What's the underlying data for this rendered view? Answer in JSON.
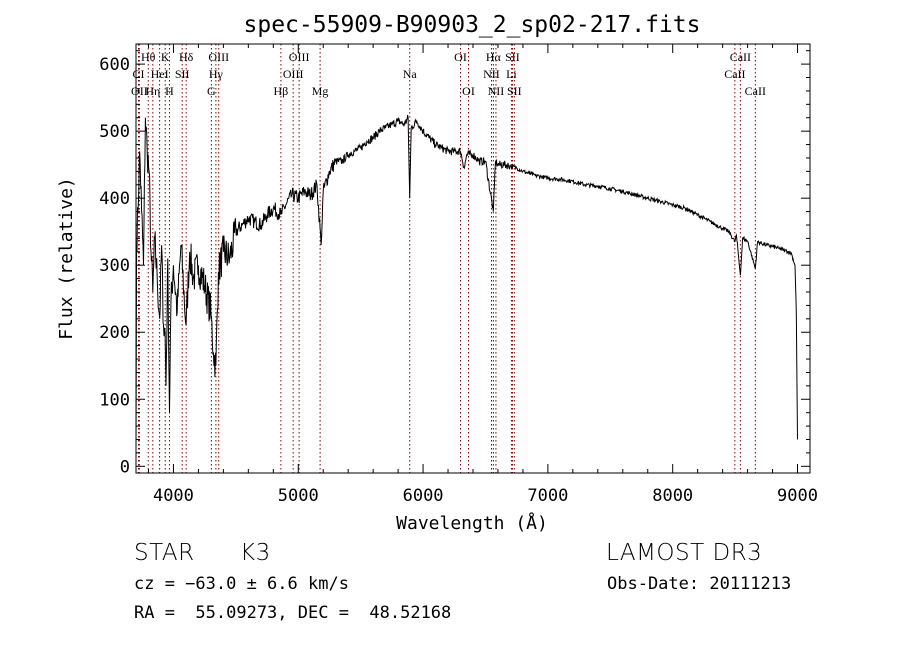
{
  "chart_data": {
    "type": "line",
    "title": "spec-55909-B90903_2_sp02-217.fits",
    "xlabel": "Wavelength (Å)",
    "ylabel": "Flux (relative)",
    "xlim": [
      3700,
      9100
    ],
    "ylim": [
      -10,
      630
    ],
    "xticks": [
      4000,
      5000,
      6000,
      7000,
      8000,
      9000
    ],
    "yticks": [
      0,
      100,
      200,
      300,
      400,
      500,
      600
    ],
    "series": [
      {
        "name": "flux",
        "points": [
          [
            3700,
            20
          ],
          [
            3705,
            330
          ],
          [
            3715,
            380
          ],
          [
            3730,
            470
          ],
          [
            3745,
            380
          ],
          [
            3760,
            300
          ],
          [
            3775,
            520
          ],
          [
            3790,
            470
          ],
          [
            3805,
            440
          ],
          [
            3820,
            320
          ],
          [
            3835,
            260
          ],
          [
            3850,
            340
          ],
          [
            3870,
            280
          ],
          [
            3890,
            220
          ],
          [
            3905,
            330
          ],
          [
            3920,
            210
          ],
          [
            3933,
            200
          ],
          [
            3940,
            120
          ],
          [
            3955,
            310
          ],
          [
            3968,
            80
          ],
          [
            3980,
            240
          ],
          [
            4000,
            300
          ],
          [
            4030,
            230
          ],
          [
            4060,
            330
          ],
          [
            4101,
            210
          ],
          [
            4130,
            320
          ],
          [
            4160,
            280
          ],
          [
            4200,
            300
          ],
          [
            4250,
            270
          ],
          [
            4300,
            230
          ],
          [
            4320,
            170
          ],
          [
            4340,
            150
          ],
          [
            4360,
            290
          ],
          [
            4400,
            320
          ],
          [
            4450,
            310
          ],
          [
            4500,
            350
          ],
          [
            4550,
            360
          ],
          [
            4600,
            370
          ],
          [
            4650,
            365
          ],
          [
            4700,
            360
          ],
          [
            4750,
            375
          ],
          [
            4800,
            385
          ],
          [
            4861,
            375
          ],
          [
            4900,
            390
          ],
          [
            4950,
            405
          ],
          [
            5000,
            400
          ],
          [
            5050,
            410
          ],
          [
            5100,
            405
          ],
          [
            5150,
            420
          ],
          [
            5183,
            330
          ],
          [
            5200,
            410
          ],
          [
            5250,
            440
          ],
          [
            5300,
            455
          ],
          [
            5350,
            455
          ],
          [
            5400,
            465
          ],
          [
            5450,
            470
          ],
          [
            5500,
            475
          ],
          [
            5550,
            485
          ],
          [
            5600,
            490
          ],
          [
            5650,
            500
          ],
          [
            5700,
            505
          ],
          [
            5750,
            510
          ],
          [
            5800,
            515
          ],
          [
            5850,
            510
          ],
          [
            5880,
            520
          ],
          [
            5893,
            400
          ],
          [
            5905,
            505
          ],
          [
            5950,
            515
          ],
          [
            6000,
            500
          ],
          [
            6050,
            490
          ],
          [
            6100,
            480
          ],
          [
            6150,
            475
          ],
          [
            6200,
            470
          ],
          [
            6250,
            470
          ],
          [
            6300,
            470
          ],
          [
            6330,
            445
          ],
          [
            6350,
            465
          ],
          [
            6400,
            465
          ],
          [
            6450,
            455
          ],
          [
            6500,
            455
          ],
          [
            6563,
            380
          ],
          [
            6580,
            455
          ],
          [
            6600,
            450
          ],
          [
            6650,
            450
          ],
          [
            6700,
            448
          ],
          [
            6750,
            445
          ],
          [
            6800,
            440
          ],
          [
            6850,
            437
          ],
          [
            6900,
            434
          ],
          [
            6950,
            432
          ],
          [
            7000,
            430
          ],
          [
            7100,
            428
          ],
          [
            7200,
            425
          ],
          [
            7300,
            420
          ],
          [
            7400,
            418
          ],
          [
            7500,
            414
          ],
          [
            7600,
            410
          ],
          [
            7700,
            405
          ],
          [
            7800,
            400
          ],
          [
            7900,
            395
          ],
          [
            8000,
            390
          ],
          [
            8100,
            385
          ],
          [
            8200,
            375
          ],
          [
            8300,
            365
          ],
          [
            8400,
            355
          ],
          [
            8450,
            350
          ],
          [
            8498,
            335
          ],
          [
            8510,
            345
          ],
          [
            8542,
            285
          ],
          [
            8560,
            340
          ],
          [
            8600,
            336
          ],
          [
            8662,
            295
          ],
          [
            8680,
            335
          ],
          [
            8750,
            330
          ],
          [
            8800,
            328
          ],
          [
            8850,
            325
          ],
          [
            8900,
            322
          ],
          [
            8950,
            318
          ],
          [
            8980,
            300
          ],
          [
            8990,
            230
          ],
          [
            9000,
            40
          ]
        ]
      }
    ],
    "line_markers": [
      {
        "label": "Hθ",
        "x": 3798,
        "row": 1,
        "color": "#8b0000"
      },
      {
        "label": "CI",
        "x": 3720,
        "row": 2,
        "color": "#8b0000"
      },
      {
        "label": "OII",
        "x": 3727,
        "row": 3,
        "color": "#8b0000"
      },
      {
        "label": "Hη",
        "x": 3835,
        "row": 3,
        "color": "#8b0000"
      },
      {
        "label": "K",
        "x": 3934,
        "row": 1,
        "color": "#8b0000"
      },
      {
        "label": "HeI",
        "x": 3889,
        "row": 2,
        "color": "#8b0000"
      },
      {
        "label": "H",
        "x": 3968,
        "row": 3,
        "color": "#8b0000"
      },
      {
        "label": "SII",
        "x": 4070,
        "row": 2,
        "color": "#8b0000"
      },
      {
        "label": "Hδ",
        "x": 4102,
        "row": 1,
        "color": "#8b0000"
      },
      {
        "label": "OIII",
        "x": 4363,
        "row": 1,
        "color": "#8b0000"
      },
      {
        "label": "Hγ",
        "x": 4340,
        "row": 2,
        "color": "#8b0000"
      },
      {
        "label": "G",
        "x": 4304,
        "row": 3,
        "color": "#8b0000"
      },
      {
        "label": "Hβ",
        "x": 4861,
        "row": 3,
        "color": "#8b0000"
      },
      {
        "label": "OIII",
        "x": 5007,
        "row": 1,
        "color": "#8b0000"
      },
      {
        "label": "OIII",
        "x": 4959,
        "row": 2,
        "color": "#8b0000"
      },
      {
        "label": "Mg",
        "x": 5175,
        "row": 3,
        "color": "#8b0000"
      },
      {
        "label": "Na",
        "x": 5893,
        "row": 2,
        "color": "#8b0000"
      },
      {
        "label": "OI",
        "x": 6300,
        "row": 1,
        "color": "#8b0000"
      },
      {
        "label": "OI",
        "x": 6364,
        "row": 3,
        "color": "#8b0000"
      },
      {
        "label": "Hα",
        "x": 6563,
        "row": 1,
        "color": "#8b0000"
      },
      {
        "label": "SII",
        "x": 6716,
        "row": 1,
        "color": "#8b0000"
      },
      {
        "label": "NII",
        "x": 6548,
        "row": 2,
        "color": "#8b0000"
      },
      {
        "label": "Li",
        "x": 6708,
        "row": 2,
        "color": "#8b0000"
      },
      {
        "label": "NII",
        "x": 6584,
        "row": 3,
        "color": "#8b0000"
      },
      {
        "label": "SII",
        "x": 6731,
        "row": 3,
        "color": "#8b0000"
      },
      {
        "label": "CaII",
        "x": 8542,
        "row": 1,
        "color": "#8b0000"
      },
      {
        "label": "CaII",
        "x": 8498,
        "row": 2,
        "color": "#8b0000"
      },
      {
        "label": "CaII",
        "x": 8662,
        "row": 3,
        "color": "#8b0000"
      }
    ]
  },
  "info": {
    "object_class": "STAR",
    "subclass": "K3",
    "survey": "LAMOST DR3",
    "velocity": "cz = −63.0 ± 6.6 km/s",
    "obs_date": "Obs-Date: 20111213",
    "coords": "RA =  55.09273, DEC =  48.52168"
  }
}
